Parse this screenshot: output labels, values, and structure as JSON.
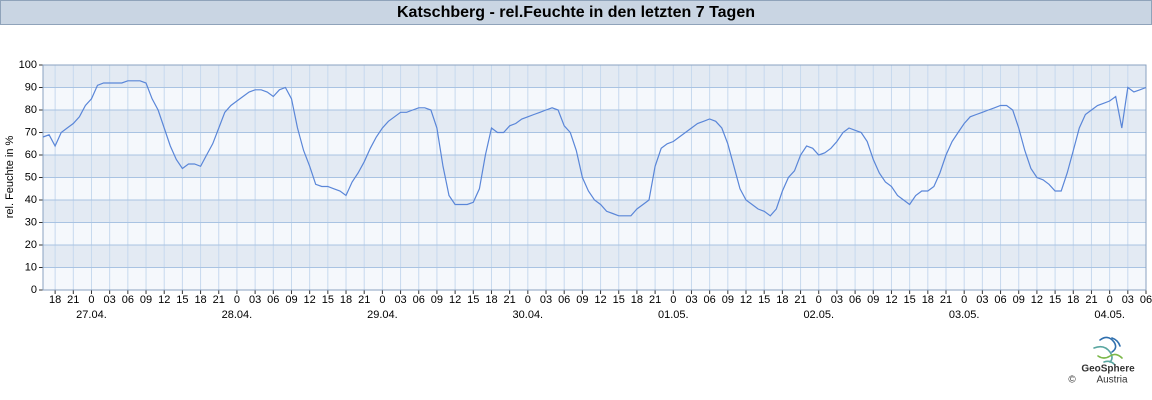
{
  "chart_data": {
    "type": "line",
    "title": "Katschberg - rel.Feuchte in den letzten 7 Tagen",
    "y_label": "rel. Feuchte in %",
    "xlim": [
      -8,
      174
    ],
    "ylim": [
      0,
      100
    ],
    "yticks": [
      0,
      10,
      20,
      30,
      40,
      50,
      60,
      70,
      80,
      90,
      100
    ],
    "xticks": [
      {
        "value": -6,
        "label": "18"
      },
      {
        "value": -3,
        "label": "21"
      },
      0,
      {
        "value": 3,
        "label": "03"
      },
      {
        "value": 6,
        "label": "06"
      },
      {
        "value": 9,
        "label": "09"
      },
      12,
      15,
      18,
      21,
      {
        "value": 24,
        "label": "0"
      },
      {
        "value": 27,
        "label": "03"
      },
      {
        "value": 30,
        "label": "06"
      },
      {
        "value": 33,
        "label": "09"
      },
      {
        "value": 36,
        "label": "12"
      },
      {
        "value": 39,
        "label": "15"
      },
      {
        "value": 42,
        "label": "18"
      },
      {
        "value": 45,
        "label": "21"
      },
      {
        "value": 48,
        "label": "0"
      },
      {
        "value": 51,
        "label": "03"
      },
      {
        "value": 54,
        "label": "06"
      },
      {
        "value": 57,
        "label": "09"
      },
      {
        "value": 60,
        "label": "12"
      },
      {
        "value": 63,
        "label": "15"
      },
      {
        "value": 66,
        "label": "18"
      },
      {
        "value": 69,
        "label": "21"
      },
      {
        "value": 72,
        "label": "0"
      },
      {
        "value": 75,
        "label": "03"
      },
      {
        "value": 78,
        "label": "06"
      },
      {
        "value": 81,
        "label": "09"
      },
      {
        "value": 84,
        "label": "12"
      },
      {
        "value": 87,
        "label": "15"
      },
      {
        "value": 90,
        "label": "18"
      },
      {
        "value": 93,
        "label": "21"
      },
      {
        "value": 96,
        "label": "0"
      },
      {
        "value": 99,
        "label": "03"
      },
      {
        "value": 102,
        "label": "06"
      },
      {
        "value": 105,
        "label": "09"
      },
      {
        "value": 108,
        "label": "12"
      },
      {
        "value": 111,
        "label": "15"
      },
      {
        "value": 114,
        "label": "18"
      },
      {
        "value": 117,
        "label": "21"
      },
      {
        "value": 120,
        "label": "0"
      },
      {
        "value": 123,
        "label": "03"
      },
      {
        "value": 126,
        "label": "06"
      },
      {
        "value": 129,
        "label": "09"
      },
      {
        "value": 132,
        "label": "12"
      },
      {
        "value": 135,
        "label": "15"
      },
      {
        "value": 138,
        "label": "18"
      },
      {
        "value": 141,
        "label": "21"
      },
      {
        "value": 144,
        "label": "0"
      },
      {
        "value": 147,
        "label": "03"
      },
      {
        "value": 150,
        "label": "06"
      },
      {
        "value": 153,
        "label": "09"
      },
      {
        "value": 156,
        "label": "12"
      },
      {
        "value": 159,
        "label": "15"
      },
      {
        "value": 162,
        "label": "18"
      },
      {
        "value": 165,
        "label": "21"
      },
      {
        "value": 168,
        "label": "0"
      },
      {
        "value": 171,
        "label": "03"
      },
      {
        "value": 174,
        "label": "06"
      }
    ],
    "date_labels": [
      {
        "value": 0,
        "label": "27.04."
      },
      {
        "value": 24,
        "label": "28.04."
      },
      {
        "value": 48,
        "label": "29.04."
      },
      {
        "value": 72,
        "label": "30.04."
      },
      {
        "value": 96,
        "label": "01.05."
      },
      {
        "value": 120,
        "label": "02.05."
      },
      {
        "value": 144,
        "label": "03.05."
      },
      {
        "value": 168,
        "label": "04.05."
      }
    ],
    "grid": true,
    "x": [
      -8,
      -7,
      -6,
      -5,
      -4,
      -3,
      -2,
      -1,
      0,
      1,
      2,
      3,
      4,
      5,
      6,
      7,
      8,
      9,
      10,
      11,
      12,
      13,
      14,
      15,
      16,
      17,
      18,
      19,
      20,
      21,
      22,
      23,
      24,
      25,
      26,
      27,
      28,
      29,
      30,
      31,
      32,
      33,
      34,
      35,
      36,
      37,
      38,
      39,
      40,
      41,
      42,
      43,
      44,
      45,
      46,
      47,
      48,
      49,
      50,
      51,
      52,
      53,
      54,
      55,
      56,
      57,
      58,
      59,
      60,
      61,
      62,
      63,
      64,
      65,
      66,
      67,
      68,
      69,
      70,
      71,
      72,
      73,
      74,
      75,
      76,
      77,
      78,
      79,
      80,
      81,
      82,
      83,
      84,
      85,
      86,
      87,
      88,
      89,
      90,
      91,
      92,
      93,
      94,
      95,
      96,
      97,
      98,
      99,
      100,
      101,
      102,
      103,
      104,
      105,
      106,
      107,
      108,
      109,
      110,
      111,
      112,
      113,
      114,
      115,
      116,
      117,
      118,
      119,
      120,
      121,
      122,
      123,
      124,
      125,
      126,
      127,
      128,
      129,
      130,
      131,
      132,
      133,
      134,
      135,
      136,
      137,
      138,
      139,
      140,
      141,
      142,
      143,
      144,
      145,
      146,
      147,
      148,
      149,
      150,
      151,
      152,
      153,
      154,
      155,
      156,
      157,
      158,
      159,
      160,
      161,
      162,
      163,
      164,
      165,
      166,
      167,
      168,
      169,
      170,
      171,
      172,
      173,
      174
    ],
    "series": [
      {
        "name": "rel. Feuchte",
        "color": "#5a86d8",
        "values": [
          68,
          69,
          64,
          70,
          72,
          74,
          77,
          82,
          85,
          91,
          92,
          92,
          92,
          92,
          93,
          93,
          93,
          92,
          85,
          80,
          72,
          64,
          58,
          54,
          56,
          56,
          55,
          60,
          65,
          72,
          79,
          82,
          84,
          86,
          88,
          89,
          89,
          88,
          86,
          89,
          90,
          85,
          72,
          62,
          55,
          47,
          46,
          46,
          45,
          44,
          42,
          48,
          52,
          57,
          63,
          68,
          72,
          75,
          77,
          79,
          79,
          80,
          81,
          81,
          80,
          72,
          55,
          42,
          38,
          38,
          38,
          39,
          45,
          60,
          72,
          70,
          70,
          73,
          74,
          76,
          77,
          78,
          79,
          80,
          81,
          80,
          73,
          70,
          62,
          50,
          44,
          40,
          38,
          35,
          34,
          33,
          33,
          33,
          36,
          38,
          40,
          55,
          63,
          65,
          66,
          68,
          70,
          72,
          74,
          75,
          76,
          75,
          72,
          65,
          55,
          45,
          40,
          38,
          36,
          35,
          33,
          36,
          44,
          50,
          53,
          60,
          64,
          63,
          60,
          61,
          63,
          66,
          70,
          72,
          71,
          70,
          66,
          58,
          52,
          48,
          46,
          42,
          40,
          38,
          42,
          44,
          44,
          46,
          52,
          60,
          66,
          70,
          74,
          77,
          78,
          79,
          80,
          81,
          82,
          82,
          80,
          72,
          62,
          54,
          50,
          49,
          47,
          44,
          44,
          52,
          62,
          72,
          78,
          80,
          82,
          83,
          84,
          86,
          72,
          90,
          88,
          89,
          90
        ]
      }
    ]
  },
  "footer": {
    "logo_name": "GeoSphere",
    "logo_sub": "Austria",
    "copyright": "©"
  }
}
